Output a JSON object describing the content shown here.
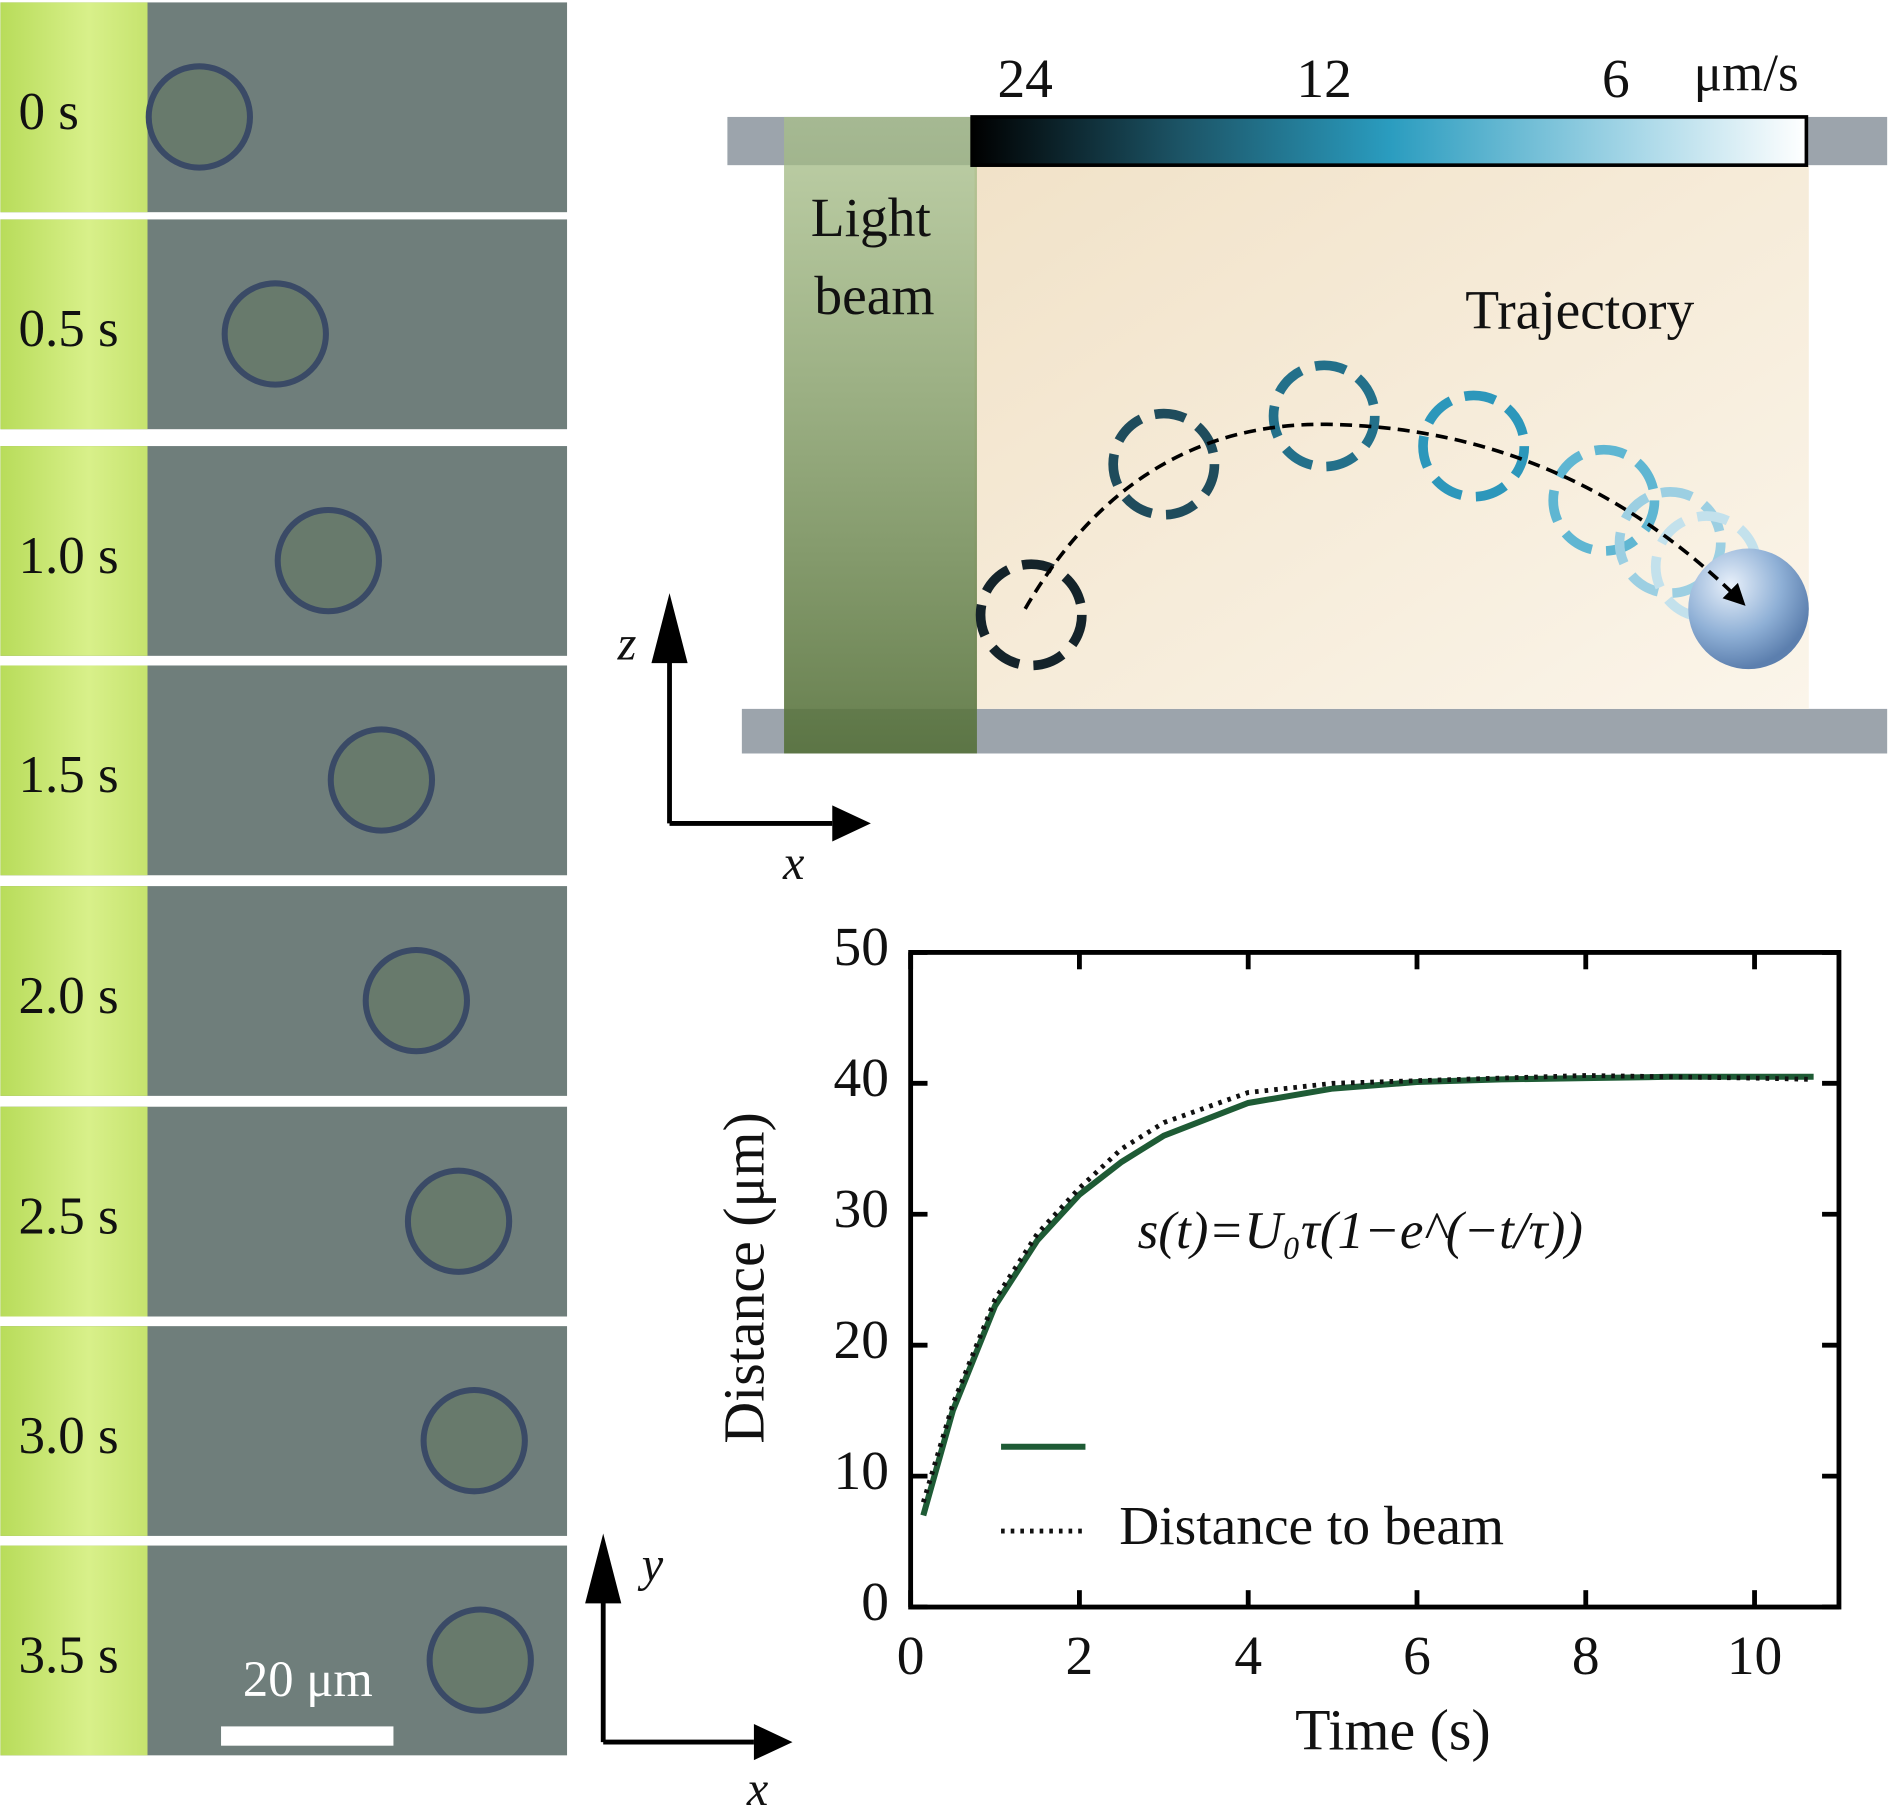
{
  "frames": {
    "labels": [
      "0 s",
      "0.5 s",
      "1.0 s",
      "1.5 s",
      "2.0 s",
      "2.5 s",
      "3.0 s",
      "3.5 s"
    ],
    "scale_bar": "20 μm"
  },
  "axes_top": {
    "vertical": "z",
    "horizontal": "x"
  },
  "axes_bottom": {
    "vertical": "y",
    "horizontal": "x"
  },
  "schematic": {
    "beam_label": [
      "Light",
      "beam"
    ],
    "trajectory_label": "Trajectory",
    "colorbar": {
      "ticks": [
        "24",
        "12",
        "6"
      ],
      "unit": "μm/s"
    }
  },
  "chart_data": {
    "type": "line",
    "xlabel": "Time (s)",
    "ylabel": "Distance (μm)",
    "annotation": "s(t)=U₀τ(1−e^(−t/τ))",
    "xlim": [
      0,
      11
    ],
    "ylim": [
      0,
      50
    ],
    "xticks": [
      0,
      2,
      4,
      6,
      8,
      10
    ],
    "yticks": [
      0,
      10,
      20,
      30,
      40,
      50
    ],
    "x": [
      0.15,
      0.5,
      1,
      1.5,
      2,
      2.5,
      3,
      4,
      5,
      6,
      7,
      8,
      9,
      10,
      10.7
    ],
    "series": [
      {
        "color": "#1e5b35",
        "style": "solid",
        "values": [
          7,
          15,
          23,
          28,
          31.5,
          34,
          36,
          38.5,
          39.6,
          40.1,
          40.3,
          40.4,
          40.5,
          40.5,
          40.5
        ]
      },
      {
        "name": "Distance to beam",
        "color": "#111111",
        "style": "dotted",
        "values": [
          8,
          15.5,
          23.5,
          28.5,
          32,
          35,
          37,
          39.3,
          40,
          40.2,
          40.4,
          40.6,
          40.5,
          40.4,
          40.3
        ]
      }
    ]
  }
}
